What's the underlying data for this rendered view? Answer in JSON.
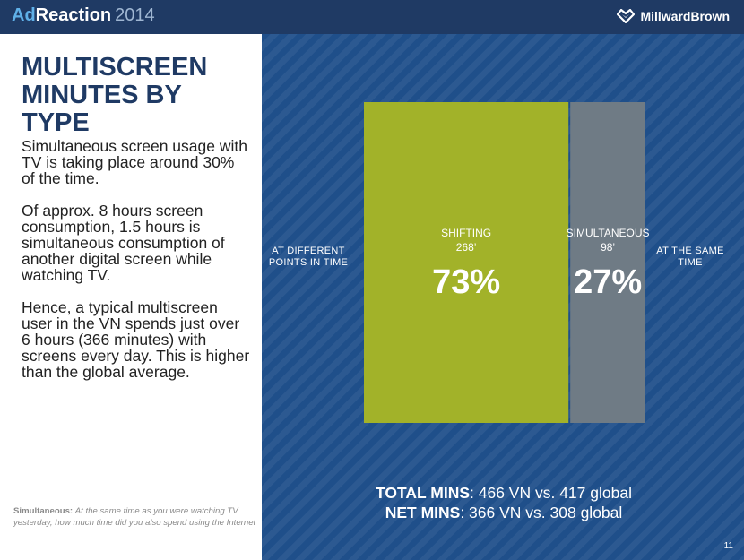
{
  "header": {
    "brand_ad": "Ad",
    "brand_reaction": "Reaction",
    "brand_year": "2014",
    "company": "MillwardBrown",
    "company_icon": "millwardbrown-logo-icon",
    "bg_color": "#1f3a64"
  },
  "left": {
    "title_line1": "MULTISCREEN",
    "title_line2": "MINUTES BY TYPE",
    "paragraphs": [
      "Simultaneous screen usage with TV is taking place around 30% of the time.",
      "Of approx. 8 hours screen consumption, 1.5 hours is simultaneous consumption of another digital screen while watching TV.",
      "Hence, a typical multiscreen user in the VN spends just over 6 hours  (366 minutes) with screens every day.  This is higher than the global average."
    ],
    "footnote_label": "Simultaneous:",
    "footnote_text": "At the same time as you were watching TV yesterday, how much time did you also spend using the Internet"
  },
  "right": {
    "label_left": "AT DIFFERENT POINTS IN TIME",
    "label_right": "AT THE SAME TIME",
    "totals_key1": "TOTAL MINS",
    "totals_val1": ":  466 VN vs. 417 global",
    "totals_key2": "NET MINS",
    "totals_val2": ":  366 VN vs. 308 global",
    "page_number": "11"
  },
  "chart_data": {
    "type": "bar",
    "categories": [
      "SHIFTING",
      "SIMULTANEOUS"
    ],
    "values": [
      268,
      98
    ],
    "value_labels": [
      "268’",
      "98’"
    ],
    "percent_labels": [
      "73%",
      "27%"
    ],
    "percents": [
      73,
      27
    ],
    "colors": [
      "#a2b229",
      "#6f7b85"
    ]
  }
}
